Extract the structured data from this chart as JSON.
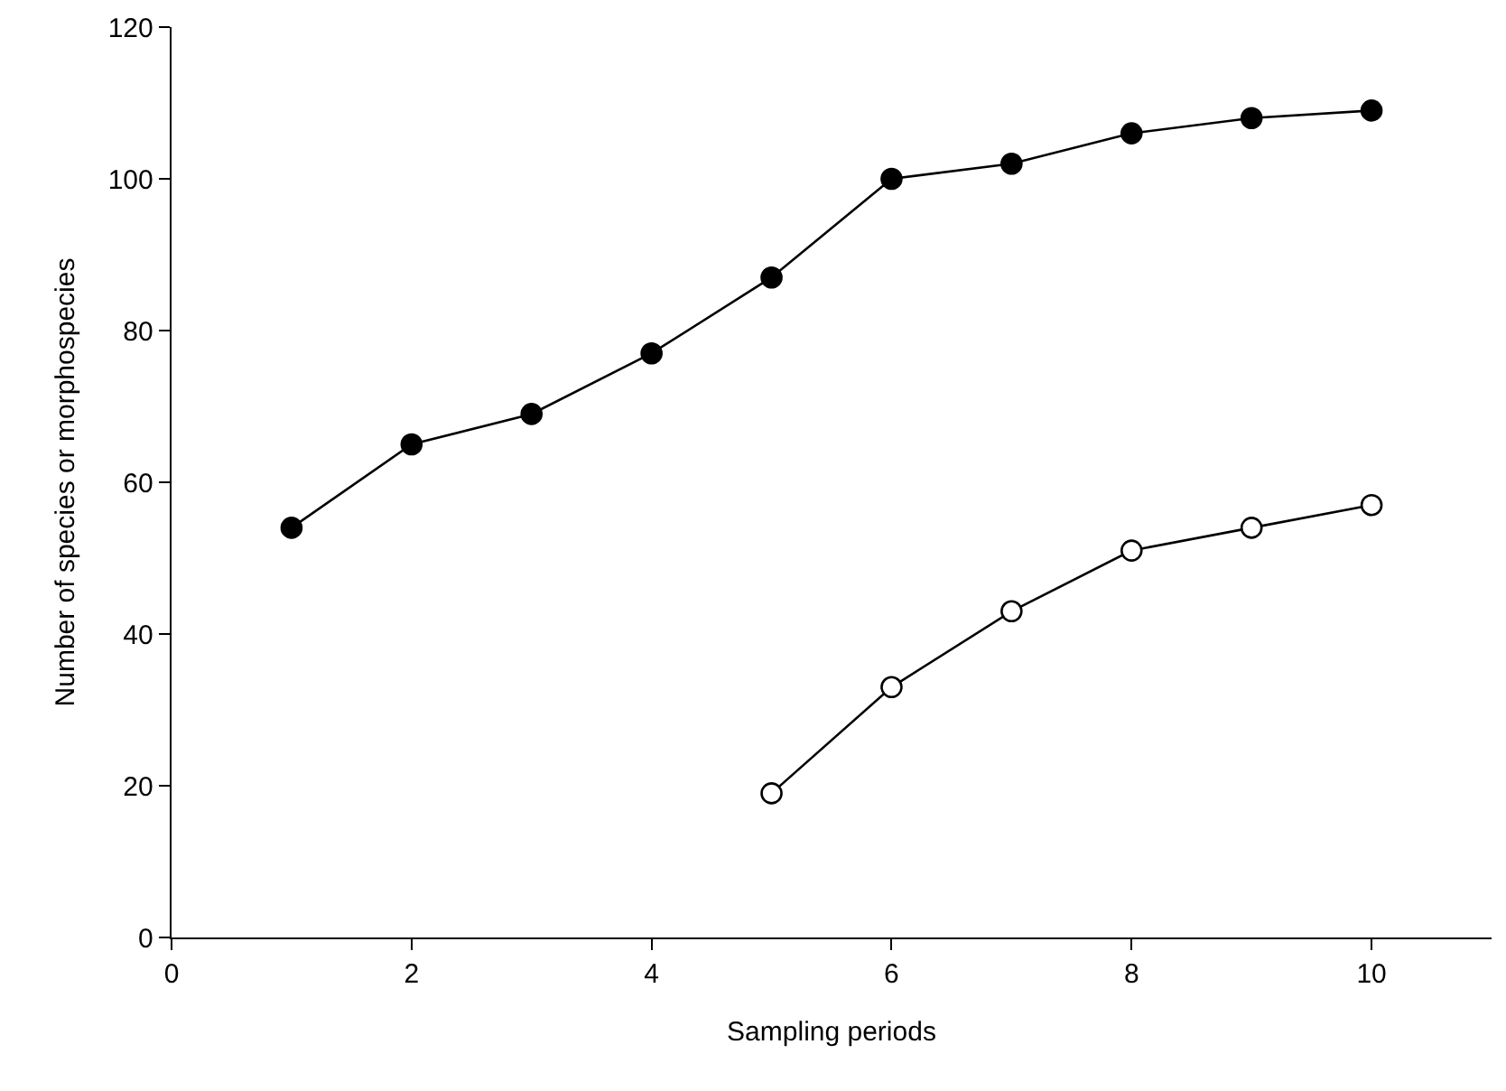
{
  "chart_data": {
    "type": "line",
    "xlabel": "Sampling periods",
    "ylabel": "Number of species or morphospecies",
    "xlim": [
      0,
      11
    ],
    "xticks": [
      0,
      2,
      4,
      6,
      8,
      10
    ],
    "ylim": [
      0,
      120
    ],
    "yticks": [
      0,
      20,
      40,
      60,
      80,
      100,
      120
    ],
    "marker": "circle",
    "line_style": "solid",
    "series": [
      {
        "color": "#000000",
        "x": [
          1,
          2,
          3,
          4,
          5,
          6,
          7,
          8,
          9,
          10
        ],
        "values": [
          54,
          65,
          69,
          77,
          87,
          100,
          102,
          106,
          108,
          109
        ]
      },
      {
        "color": "#ffffff",
        "x": [
          5,
          6,
          7,
          8,
          9,
          10
        ],
        "values": [
          19,
          33,
          43,
          51,
          54,
          57
        ]
      }
    ]
  }
}
